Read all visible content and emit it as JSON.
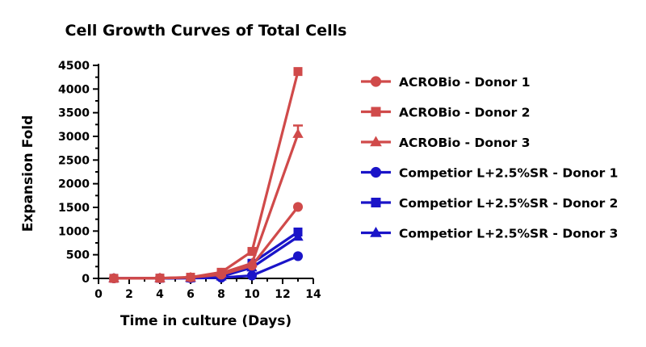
{
  "chart_data": {
    "type": "line",
    "title": "Cell Growth Curves of Total Cells",
    "xlabel": "Time in culture (Days)",
    "ylabel": "Expansion Fold",
    "xlim": [
      0,
      14
    ],
    "ylim": [
      0,
      4500
    ],
    "xticks": [
      0,
      2,
      4,
      6,
      8,
      10,
      12,
      14
    ],
    "yticks": [
      0,
      500,
      1000,
      1500,
      2000,
      2500,
      3000,
      3500,
      4000,
      4500
    ],
    "grid": false,
    "legend_position": "right",
    "x": [
      1,
      4,
      6,
      8,
      10,
      13
    ],
    "series": [
      {
        "name": "ACROBio - Donor 1",
        "color": "#d04a4a",
        "marker": "circle",
        "values": [
          1,
          5,
          20,
          80,
          270,
          1510
        ],
        "errors": [
          0,
          0,
          0,
          0,
          0,
          0
        ]
      },
      {
        "name": "ACROBio - Donor 2",
        "color": "#d04a4a",
        "marker": "square",
        "values": [
          1,
          5,
          25,
          130,
          570,
          4370
        ],
        "errors": [
          0,
          0,
          0,
          0,
          0,
          0
        ]
      },
      {
        "name": "ACROBio - Donor 3",
        "color": "#d04a4a",
        "marker": "triangle",
        "values": [
          1,
          5,
          20,
          110,
          320,
          3050
        ],
        "errors": [
          0,
          0,
          0,
          0,
          0,
          180
        ]
      },
      {
        "name": "Competior L+2.5%SR - Donor 1",
        "color": "#1a14c8",
        "marker": "circle",
        "values": [
          1,
          2,
          5,
          15,
          60,
          470
        ],
        "errors": [
          0,
          0,
          0,
          0,
          0,
          0
        ]
      },
      {
        "name": "Competior L+2.5%SR - Donor 2",
        "color": "#1a14c8",
        "marker": "square",
        "values": [
          1,
          3,
          10,
          50,
          320,
          980
        ],
        "errors": [
          0,
          0,
          0,
          0,
          0,
          0
        ]
      },
      {
        "name": "Competior L+2.5%SR - Donor 3",
        "color": "#1a14c8",
        "marker": "triangle",
        "values": [
          1,
          3,
          10,
          40,
          230,
          880
        ],
        "errors": [
          0,
          0,
          0,
          0,
          0,
          0
        ]
      }
    ]
  }
}
